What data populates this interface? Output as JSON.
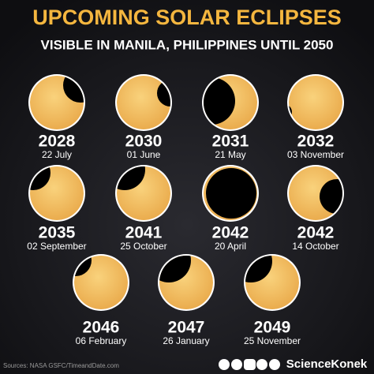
{
  "header": {
    "title": "UPCOMING SOLAR ECLIPSES",
    "subtitle": "VISIBLE IN MANILA, PHILIPPINES UNTIL 2050"
  },
  "eclipses": [
    {
      "year": "2028",
      "date": "22 July"
    },
    {
      "year": "2030",
      "date": "01 June"
    },
    {
      "year": "2031",
      "date": "21 May"
    },
    {
      "year": "2032",
      "date": "03 November"
    },
    {
      "year": "2035",
      "date": "02 September"
    },
    {
      "year": "2041",
      "date": "25 October"
    },
    {
      "year": "2042",
      "date": "20 April"
    },
    {
      "year": "2042",
      "date": "14 October"
    },
    {
      "year": "2046",
      "date": "06 February"
    },
    {
      "year": "2047",
      "date": "26 January"
    },
    {
      "year": "2049",
      "date": "25 November"
    }
  ],
  "footer": {
    "source": "Sources: NASA GSFC/TimeandDate.com",
    "brand": "ScienceKonek"
  }
}
